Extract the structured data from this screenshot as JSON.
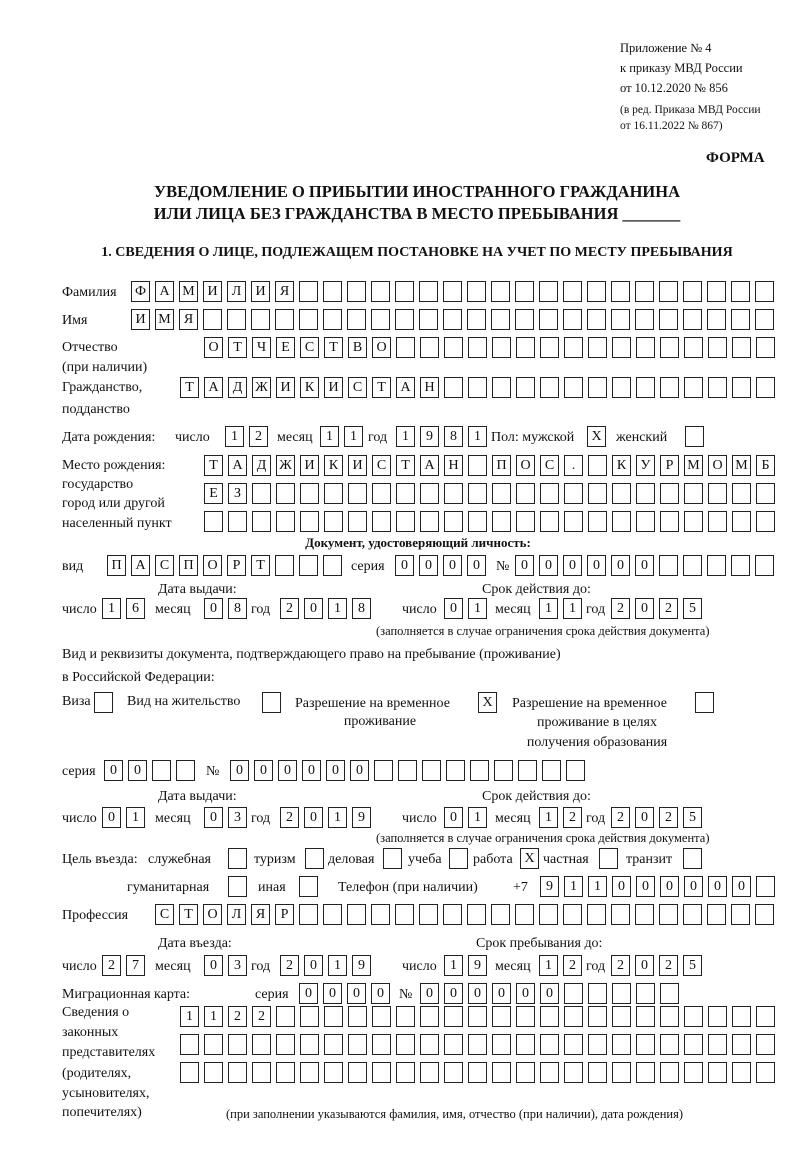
{
  "header": {
    "appendix_lines": [
      "Приложение № 4",
      "к приказу МВД России",
      "от 10.12.2020 № 856"
    ],
    "amend_lines": [
      "(в ред. Приказа МВД России",
      "от 16.11.2022 № 867)"
    ],
    "form_label": "ФОРМА",
    "title_line1": "УВЕДОМЛЕНИЕ О ПРИБЫТИИ ИНОСТРАННОГО ГРАЖДАНИНА",
    "title_line2": "ИЛИ ЛИЦА БЕЗ ГРАЖДАНСТВА В МЕСТО ПРЕБЫВАНИЯ _______",
    "section1": "1. СВЕДЕНИЯ О ЛИЦЕ, ПОДЛЕЖАЩЕМ ПОСТАНОВКЕ НА УЧЕТ ПО МЕСТУ ПРЕБЫВАНИЯ"
  },
  "person": {
    "surname_label": "Фамилия",
    "surname": "ФАМИЛИЯ",
    "name_label": "Имя",
    "name": "ИМЯ",
    "patronymic_label": "Отчество",
    "patronymic_label2": "(при наличии)",
    "patronymic": "ОТЧЕСТВО",
    "citizenship_label": "Гражданство,",
    "citizenship_label2": "подданство",
    "citizenship": "ТАДЖИКИСТАН",
    "birth_label": "Дата рождения:",
    "day_label": "число",
    "month_label": "месяц",
    "year_label": "год",
    "birth_day": "12",
    "birth_month": "11",
    "birth_year": "1981",
    "sex_label": "Пол: мужской",
    "female_label": "женский",
    "male_mark": "X",
    "female_mark": "",
    "birthplace_labels": [
      "Место рождения:",
      "государство",
      "город или другой",
      "населенный пункт"
    ],
    "birthplace": [
      "ТАДЖИКИСТАН ПОС. КУРМОМБ",
      "ЕЗ",
      ""
    ]
  },
  "id_doc": {
    "heading": "Документ, удостоверяющий личность:",
    "kind_label": "вид",
    "kind": "ПАСПОРТ",
    "series_label": "серия",
    "series": "0000",
    "number_label": "№",
    "number": "000000",
    "issue_label": "Дата выдачи:",
    "valid_label": "Срок действия до:",
    "issue_day": "16",
    "issue_month": "08",
    "issue_year": "2018",
    "valid_day": "01",
    "valid_month": "11",
    "valid_year": "2025",
    "note": "(заполняется в случае ограничения срока действия документа)"
  },
  "right_doc": {
    "line1": "Вид и реквизиты документа, подтверждающего право на пребывание (проживание)",
    "line2": "в Российской Федерации:",
    "options": [
      {
        "label": "Виза",
        "mark": ""
      },
      {
        "label": "Вид на жительство",
        "mark": ""
      },
      {
        "label": "Разрешение на временное",
        "label2": "проживание",
        "mark": "X"
      },
      {
        "label": "Разрешение на временное",
        "label2": "проживание в целях",
        "label3": "получения образования",
        "mark": ""
      }
    ],
    "series_label": "серия",
    "series": "00",
    "number_label": "№",
    "number": "000000",
    "issue_label": "Дата выдачи:",
    "valid_label": "Срок действия до:",
    "issue_day": "01",
    "issue_month": "03",
    "issue_year": "2019",
    "valid_day": "01",
    "valid_month": "12",
    "valid_year": "2025",
    "note": "(заполняется в случае ограничения срока действия документа)"
  },
  "purpose": {
    "label": "Цель въезда:",
    "options": [
      {
        "label": "служебная",
        "mark": ""
      },
      {
        "label": "туризм",
        "mark": ""
      },
      {
        "label": "деловая",
        "mark": ""
      },
      {
        "label": "учеба",
        "mark": ""
      },
      {
        "label": "работа",
        "mark": "X"
      },
      {
        "label": "частная",
        "mark": ""
      },
      {
        "label": "транзит",
        "mark": ""
      },
      {
        "label": "гуманитарная",
        "mark": ""
      },
      {
        "label": "иная",
        "mark": ""
      }
    ],
    "phone_label": "Телефон (при наличии)",
    "phone_prefix": "+7",
    "phone": "911000000"
  },
  "profession": {
    "label": "Профессия",
    "value": "СТОЛЯР"
  },
  "entry": {
    "entry_label": "Дата въезда:",
    "stay_label": "Срок пребывания до:",
    "entry_day": "27",
    "entry_month": "03",
    "entry_year": "2019",
    "stay_day": "19",
    "stay_month": "12",
    "stay_year": "2025"
  },
  "migration_card": {
    "label": "Миграционная карта:",
    "series_label": "серия",
    "series": "0000",
    "number_label": "№",
    "number": "000000"
  },
  "representatives": {
    "labels": [
      "Сведения о",
      "законных",
      "представителях",
      "(родителях,",
      "усыновителях,",
      "попечителях)"
    ],
    "rows": [
      "1122",
      "",
      ""
    ],
    "note": "(при заполнении указываются фамилия, имя, отчество (при наличии), дата рождения)"
  }
}
